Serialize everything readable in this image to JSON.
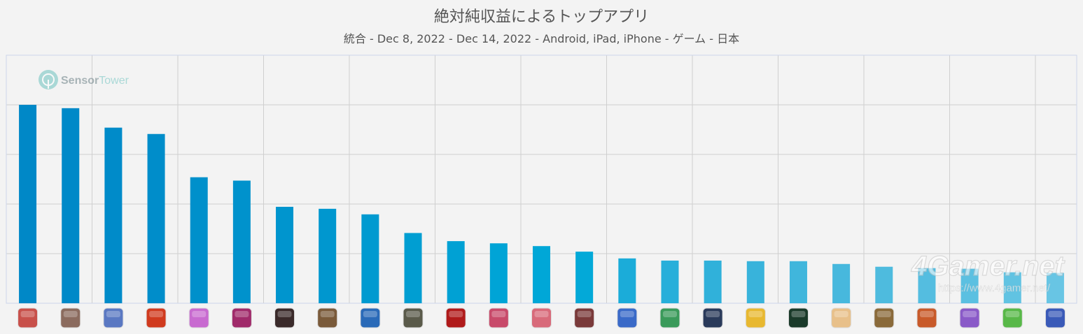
{
  "chart_data": {
    "type": "bar",
    "title": "絶対純収益によるトップアプリ",
    "subtitle": "統合 - Dec 8, 2022 - Dec 14, 2022 - Android, iPad, iPhone - ゲーム - 日本",
    "values": [
      100,
      98.3,
      88.5,
      85.3,
      63.5,
      61.8,
      48.6,
      47.6,
      44.8,
      35.4,
      31.3,
      30.2,
      28.8,
      26.0,
      22.6,
      21.5,
      21.5,
      21.2,
      21.2,
      19.8,
      18.4,
      17.7,
      17.4,
      15.6,
      15.3
    ],
    "ylim": [
      0,
      125
    ],
    "grid": true,
    "legend": "none",
    "bar_colors": [
      "#0088c7",
      "#0089c8",
      "#008bc9",
      "#008dca",
      "#0090cb",
      "#0092cc",
      "#0095ce",
      "#0097cf",
      "#009ad0",
      "#009ed2",
      "#00a1d4",
      "#00a4d6",
      "#00a7d7",
      "#03a9d8",
      "#1bacd9",
      "#27afda",
      "#30b1da",
      "#38b3db",
      "#40b6dc",
      "#47b8dd",
      "#4ebbde",
      "#54bde0",
      "#5bc0e1",
      "#61c3e2",
      "#68c5e4"
    ],
    "icon_colors": [
      "#c8504a",
      "#8b6b5e",
      "#5a78c2",
      "#d03a1e",
      "#c86ad0",
      "#a02a6a",
      "#3a2a2a",
      "#7a5a3a",
      "#2a6ab8",
      "#5a5a4a",
      "#b01a1a",
      "#c84a6a",
      "#d86a7a",
      "#7a3a3a",
      "#3a6ac8",
      "#3a9a5a",
      "#2a3a5a",
      "#e8b830",
      "#1a3a2a",
      "#e8c08a",
      "#8a6a3a",
      "#c85a2a",
      "#8a5ac8",
      "#58b848",
      "#3a5ab8"
    ]
  },
  "watermarks": {
    "sensor_a": "Sensor",
    "sensor_b": "Tower",
    "fourgamer": "4Gamer.net",
    "url": "https://www.4gamer.net/"
  }
}
